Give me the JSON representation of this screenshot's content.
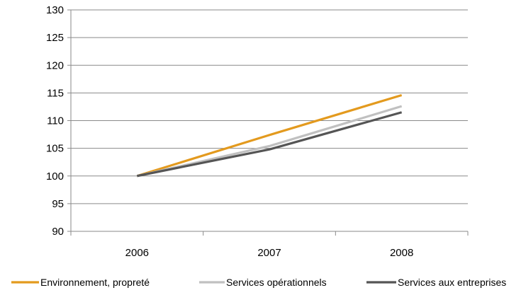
{
  "chart_data": {
    "type": "line",
    "title": "",
    "xlabel": "",
    "ylabel": "",
    "categories": [
      "2006",
      "2007",
      "2008"
    ],
    "ylim": [
      90,
      130
    ],
    "yticks": [
      90,
      95,
      100,
      105,
      110,
      115,
      120,
      125,
      130
    ],
    "grid": true,
    "legend_position": "bottom",
    "series": [
      {
        "name": "Environnement,  propreté",
        "values": [
          100,
          107.4,
          114.6
        ],
        "color": "#E39A1E"
      },
      {
        "name": "Services opérationnels",
        "values": [
          100,
          105.4,
          112.6
        ],
        "color": "#C0C0C0"
      },
      {
        "name": "Services aux entreprises",
        "values": [
          100,
          104.8,
          111.5
        ],
        "color": "#555555"
      }
    ]
  }
}
